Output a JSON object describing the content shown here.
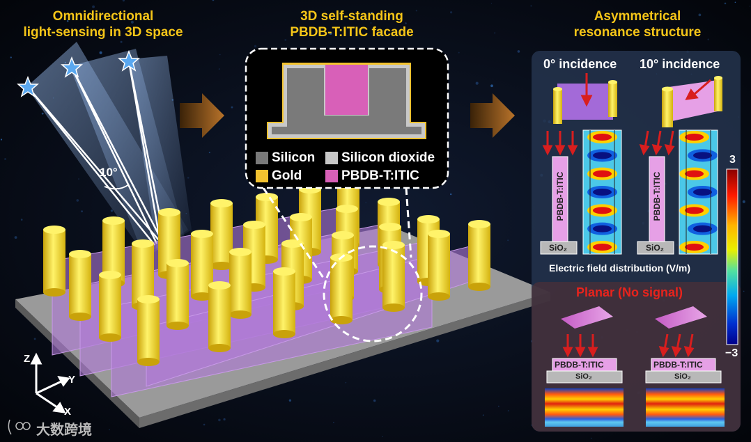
{
  "headings": {
    "left_line1": "Omnidirectional",
    "left_line2": "light-sensing in 3D space",
    "middle_line1": "3D self-standing",
    "middle_line2": "PBDB-T:ITIC facade",
    "right_line1": "Asymmetrical",
    "right_line2": "resonance structure"
  },
  "angle_label": "10°",
  "legend": {
    "silicon": "Silicon",
    "silicon_dioxide": "Silicon dioxide",
    "gold": "Gold",
    "pbdb": "PBDB-T:ITIC"
  },
  "incidence": {
    "zero": "0° incidence",
    "ten": "10° incidence"
  },
  "layer_vertical": "PBDB-T:ITIC",
  "substrate": "SiO₂",
  "field_caption": "Electric field distribution (V/m)",
  "colorbar": {
    "max": "3",
    "min": "−3"
  },
  "planar": {
    "title": "Planar (No signal)",
    "layer": "PBDB-T:ITIC",
    "substrate": "SiO₂"
  },
  "axes": {
    "z": "Z",
    "y": "Y",
    "x": "X"
  },
  "watermark": "大数跨境",
  "colors": {
    "heading": "#f5c518",
    "gold": "#f2c230",
    "pbdb": "#d860b8",
    "silicon": "#7a7a7a",
    "oxide": "#c8c8c8",
    "arrow_red": "#d81e1e"
  }
}
